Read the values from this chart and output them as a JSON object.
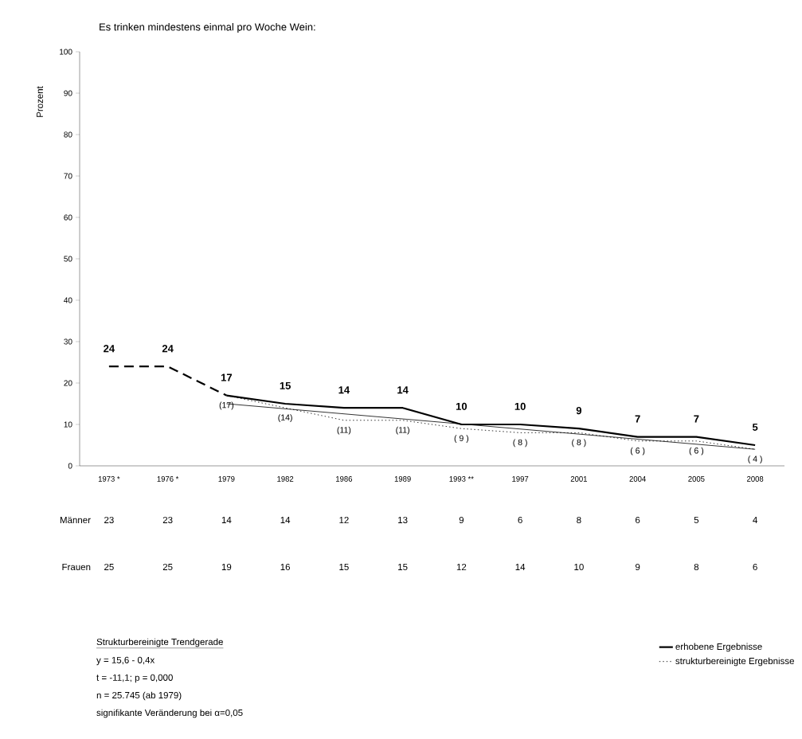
{
  "chart_data": {
    "type": "line",
    "title": "Es trinken mindestens einmal pro Woche Wein:",
    "ylabel": "Prozent",
    "categories": [
      "1973 *",
      "1976 *",
      "1979",
      "1982",
      "1986",
      "1989",
      "1993 **",
      "1997",
      "2001",
      "2004",
      "2005",
      "2008"
    ],
    "ylim": [
      0,
      100
    ],
    "yticks": [
      0,
      10,
      20,
      30,
      40,
      50,
      60,
      70,
      80,
      90,
      100
    ],
    "legend": "bottom right",
    "series": [
      {
        "values": [
          24,
          24,
          17,
          null,
          null,
          null,
          null,
          null,
          null,
          null,
          null,
          null
        ],
        "value_labels": [
          "24",
          "24",
          null,
          null,
          null,
          null,
          null,
          null,
          null,
          null,
          null,
          null
        ],
        "line_style": "dashed",
        "color": "#000000"
      },
      {
        "name": "erhobene Ergebnisse",
        "values": [
          null,
          null,
          17,
          15,
          14,
          14,
          10,
          10,
          9,
          7,
          7,
          5
        ],
        "value_labels": [
          null,
          null,
          "17",
          "15",
          "14",
          "14",
          "10",
          "10",
          "9",
          "7",
          "7",
          "5"
        ],
        "line_style": "solid",
        "color": "#000000"
      },
      {
        "name": "strukturbereinigte Ergebnisse",
        "values": [
          null,
          null,
          17,
          14,
          11,
          11,
          9,
          8,
          8,
          6,
          6,
          4
        ],
        "value_labels": [
          null,
          null,
          "(17)",
          "(14)",
          "(11)",
          "(11)",
          "( 9 )",
          "( 8 )",
          "( 8 )",
          "( 6 )",
          "( 6 )",
          "( 4 )"
        ],
        "line_style": "dotted",
        "color": "#000000"
      },
      {
        "values": [
          null,
          null,
          15,
          null,
          null,
          null,
          null,
          null,
          null,
          null,
          null,
          4
        ],
        "line_style": "solid",
        "color": "#000000"
      }
    ],
    "annotations": [
      "Männer",
      "23",
      "23",
      "14",
      "14",
      "12",
      "13",
      "9",
      "6",
      "8",
      "6",
      "5",
      "4",
      "Frauen",
      "25",
      "25",
      "19",
      "16",
      "15",
      "15",
      "12",
      "14",
      "10",
      "9",
      "8",
      "6",
      "Strukturbereinigte Trendgerade",
      "y = 15,6 - 0,4x",
      "t  = -11,1; p = 0,000",
      "n = 25.745 (ab 1979)",
      "signifikante Veränderung bei α=0,05"
    ]
  }
}
